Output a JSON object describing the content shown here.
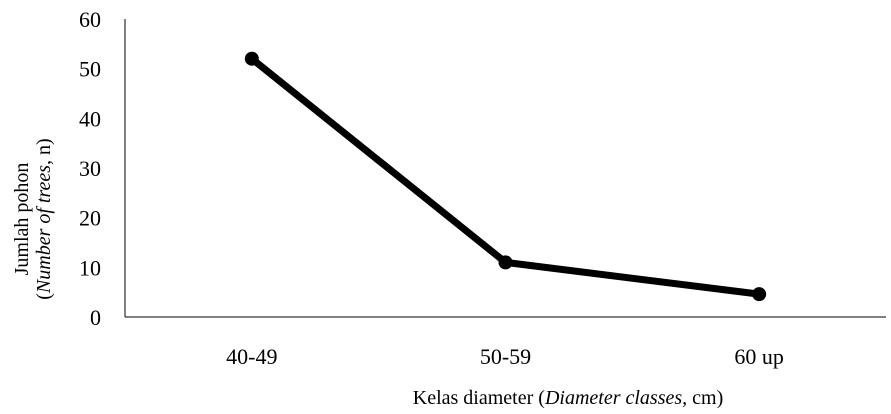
{
  "chart_data": {
    "type": "line",
    "categories": [
      "40-49",
      "50-59",
      "60 up"
    ],
    "values": [
      52,
      11,
      4.6
    ],
    "ylim": [
      0,
      60
    ],
    "yticks": [
      0,
      10,
      20,
      30,
      40,
      50,
      60
    ],
    "xlabel": {
      "main": "Kelas diameter (",
      "italic": "Diameter classes,",
      "tail": " cm)"
    },
    "ylabel": {
      "line1": "Jumlah pohon",
      "line2_pre": "(",
      "line2_italic": "Number of trees",
      "line2_tail": ", n)"
    },
    "grid": false,
    "legend": false,
    "line_color": "#000000",
    "marker_color": "#000000"
  }
}
